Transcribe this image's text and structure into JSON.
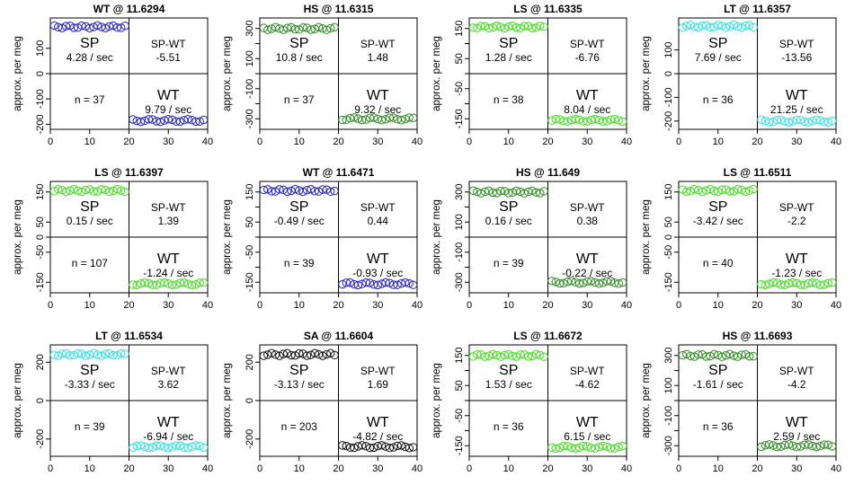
{
  "figure": {
    "ylabel": "approx. per meg",
    "sp_label": "SP",
    "wt_label": "WT",
    "spwt_label": "SP-WT",
    "x_ticks": [
      "0",
      "10",
      "20",
      "30",
      "40"
    ],
    "colors": {
      "WT": "#2222cc",
      "HS": "#2e8b22",
      "LS": "#44dd22",
      "LT": "#33e0e8",
      "SA": "#111111"
    }
  },
  "chart_data": [
    {
      "type": "scatter",
      "title": "WT @ 11.6294",
      "group": "WT",
      "xlim": [
        0,
        40
      ],
      "ylim": [
        -220,
        220
      ],
      "y_ticks": [
        100,
        0,
        -100,
        -200
      ],
      "y_tick_labels": [
        "100",
        "0",
        "-100",
        "-200"
      ],
      "sp_level": 185,
      "wt_level": -185,
      "sp_rate": "4.28 / sec",
      "spwt": "-5.51",
      "n_text": "n = 37",
      "wt_rate": "9.79 / sec"
    },
    {
      "type": "scatter",
      "title": "HS @ 11.6315",
      "group": "HS",
      "xlim": [
        0,
        40
      ],
      "ylim": [
        -370,
        370
      ],
      "y_ticks": [
        300,
        200,
        100,
        0,
        -100,
        -200,
        -300
      ],
      "y_tick_labels": [
        "300",
        "",
        "100",
        "",
        "-100",
        "",
        "-300"
      ],
      "sp_level": 300,
      "wt_level": -300,
      "sp_rate": "10.8 / sec",
      "spwt": "1.48",
      "n_text": "n = 37",
      "wt_rate": "9.32 / sec"
    },
    {
      "type": "scatter",
      "title": "LS @ 11.6335",
      "group": "LS",
      "xlim": [
        0,
        40
      ],
      "ylim": [
        -185,
        185
      ],
      "y_ticks": [
        150,
        100,
        50,
        0,
        -50,
        -100,
        -150
      ],
      "y_tick_labels": [
        "150",
        "",
        "50",
        "",
        "-50",
        "",
        "-150"
      ],
      "sp_level": 155,
      "wt_level": -155,
      "sp_rate": "1.28 / sec",
      "spwt": "-6.76",
      "n_text": "n = 38",
      "wt_rate": "8.04 / sec"
    },
    {
      "type": "scatter",
      "title": "LT @ 11.6357",
      "group": "LT",
      "xlim": [
        0,
        40
      ],
      "ylim": [
        -235,
        235
      ],
      "y_ticks": [
        100,
        0,
        -100,
        -200
      ],
      "y_tick_labels": [
        "100",
        "0",
        "-100",
        "-200"
      ],
      "sp_level": 200,
      "wt_level": -200,
      "sp_rate": "7.69 / sec",
      "spwt": "-13.56",
      "n_text": "n = 36",
      "wt_rate": "21.25 / sec"
    },
    {
      "type": "scatter",
      "title": "LS @ 11.6397",
      "group": "LS",
      "xlim": [
        0,
        40
      ],
      "ylim": [
        -185,
        185
      ],
      "y_ticks": [
        150,
        50,
        0,
        -50,
        -150
      ],
      "y_tick_labels": [
        "150",
        "50",
        "0",
        "-50",
        "-150"
      ],
      "sp_level": 155,
      "wt_level": -155,
      "sp_rate": "0.15 / sec",
      "spwt": "1.39",
      "n_text": "n = 107",
      "wt_rate": "-1.24 / sec"
    },
    {
      "type": "scatter",
      "title": "WT @ 11.6471",
      "group": "WT",
      "xlim": [
        0,
        40
      ],
      "ylim": [
        -185,
        185
      ],
      "y_ticks": [
        150,
        100,
        50,
        0,
        -50,
        -100,
        -150
      ],
      "y_tick_labels": [
        "150",
        "",
        "50",
        "",
        "-50",
        "",
        "-150"
      ],
      "sp_level": 155,
      "wt_level": -155,
      "sp_rate": "-0.49 / sec",
      "spwt": "0.44",
      "n_text": "n = 39",
      "wt_rate": "-0.93 / sec"
    },
    {
      "type": "scatter",
      "title": "HS @ 11.649",
      "group": "HS",
      "xlim": [
        0,
        40
      ],
      "ylim": [
        -370,
        370
      ],
      "y_ticks": [
        300,
        200,
        100,
        0,
        -100,
        -200,
        -300
      ],
      "y_tick_labels": [
        "300",
        "",
        "100",
        "",
        "-100",
        "",
        "-300"
      ],
      "sp_level": 300,
      "wt_level": -300,
      "sp_rate": "0.16 / sec",
      "spwt": "0.38",
      "n_text": "n = 39",
      "wt_rate": "-0.22 / sec"
    },
    {
      "type": "scatter",
      "title": "LS @ 11.6511",
      "group": "LS",
      "xlim": [
        0,
        40
      ],
      "ylim": [
        -185,
        185
      ],
      "y_ticks": [
        150,
        50,
        0,
        -50,
        -150
      ],
      "y_tick_labels": [
        "150",
        "50",
        "0",
        "-50",
        "-150"
      ],
      "sp_level": 155,
      "wt_level": -155,
      "sp_rate": "-3.42 / sec",
      "spwt": "-2.2",
      "n_text": "n = 40",
      "wt_rate": "-1.23 / sec"
    },
    {
      "type": "scatter",
      "title": "LT @ 11.6534",
      "group": "LT",
      "xlim": [
        0,
        40
      ],
      "ylim": [
        -290,
        290
      ],
      "y_ticks": [
        200,
        0,
        -200
      ],
      "y_tick_labels": [
        "200",
        "0",
        "-200"
      ],
      "sp_level": 240,
      "wt_level": -240,
      "sp_rate": "-3.33 / sec",
      "spwt": "3.62",
      "n_text": "n = 39",
      "wt_rate": "-6.94 / sec"
    },
    {
      "type": "scatter",
      "title": "SA @ 11.6604",
      "group": "SA",
      "xlim": [
        0,
        40
      ],
      "ylim": [
        -290,
        290
      ],
      "y_ticks": [
        200,
        0,
        -200
      ],
      "y_tick_labels": [
        "200",
        "0",
        "-200"
      ],
      "sp_level": 240,
      "wt_level": -240,
      "sp_rate": "-3.13 / sec",
      "spwt": "1.69",
      "n_text": "n = 203",
      "wt_rate": "-4.82 / sec"
    },
    {
      "type": "scatter",
      "title": "LS @ 11.6672",
      "group": "LS",
      "xlim": [
        0,
        40
      ],
      "ylim": [
        -185,
        185
      ],
      "y_ticks": [
        150,
        100,
        50,
        0,
        -50,
        -100,
        -150
      ],
      "y_tick_labels": [
        "150",
        "",
        "50",
        "",
        "-50",
        "",
        "-150"
      ],
      "sp_level": 150,
      "wt_level": -155,
      "sp_rate": "1.53 / sec",
      "spwt": "-4.62",
      "n_text": "n = 36",
      "wt_rate": "6.15 / sec"
    },
    {
      "type": "scatter",
      "title": "HS @ 11.6693",
      "group": "HS",
      "xlim": [
        0,
        40
      ],
      "ylim": [
        -370,
        370
      ],
      "y_ticks": [
        300,
        200,
        100,
        0,
        -100,
        -200,
        -300
      ],
      "y_tick_labels": [
        "300",
        "",
        "100",
        "",
        "-100",
        "",
        "-300"
      ],
      "sp_level": 300,
      "wt_level": -300,
      "sp_rate": "-1.61 / sec",
      "spwt": "-4.2",
      "n_text": "n = 36",
      "wt_rate": "2.59 / sec"
    }
  ]
}
